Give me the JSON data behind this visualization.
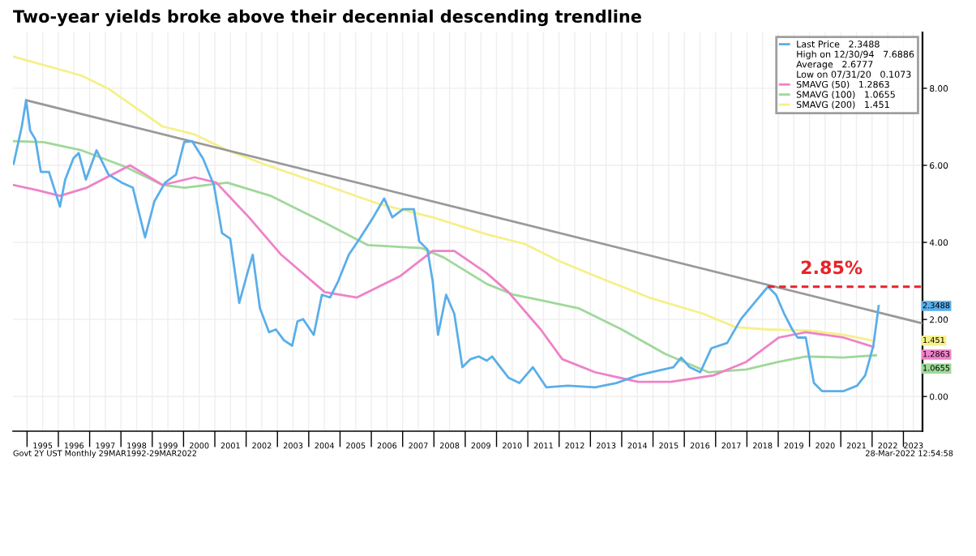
{
  "chart_data": {
    "type": "line",
    "title": "Two-year yields broke above their decennial descending trendline",
    "xlim": [
      1994.55,
      2023.61
    ],
    "ylim": [
      -0.9,
      9.45
    ],
    "xticks": [
      {
        "value": 1995,
        "label": null
      },
      {
        "value": 1995.5,
        "label": "1995"
      },
      {
        "value": 1996,
        "label": null
      },
      {
        "value": 1996.5,
        "label": "1996"
      },
      {
        "value": 1997,
        "label": null
      },
      {
        "value": 1997.5,
        "label": "1997"
      },
      {
        "value": 1998,
        "label": null
      },
      {
        "value": 1998.5,
        "label": "1998"
      },
      {
        "value": 1999,
        "label": null
      },
      {
        "value": 1999.5,
        "label": "1999"
      },
      {
        "value": 2000,
        "label": null
      },
      {
        "value": 2000.5,
        "label": "2000"
      },
      {
        "value": 2001,
        "label": null
      },
      {
        "value": 2001.5,
        "label": "2001"
      },
      {
        "value": 2002,
        "label": null
      },
      {
        "value": 2002.5,
        "label": "2002"
      },
      {
        "value": 2003,
        "label": null
      },
      {
        "value": 2003.5,
        "label": "2003"
      },
      {
        "value": 2004,
        "label": null
      },
      {
        "value": 2004.5,
        "label": "2004"
      },
      {
        "value": 2005,
        "label": null
      },
      {
        "value": 2005.5,
        "label": "2005"
      },
      {
        "value": 2006,
        "label": null
      },
      {
        "value": 2006.5,
        "label": "2006"
      },
      {
        "value": 2007,
        "label": null
      },
      {
        "value": 2007.5,
        "label": "2007"
      },
      {
        "value": 2008,
        "label": null
      },
      {
        "value": 2008.5,
        "label": "2008"
      },
      {
        "value": 2009,
        "label": null
      },
      {
        "value": 2009.5,
        "label": "2009"
      },
      {
        "value": 2010,
        "label": null
      },
      {
        "value": 2010.5,
        "label": "2010"
      },
      {
        "value": 2011,
        "label": null
      },
      {
        "value": 2011.5,
        "label": "2011"
      },
      {
        "value": 2012,
        "label": null
      },
      {
        "value": 2012.5,
        "label": "2012"
      },
      {
        "value": 2013,
        "label": null
      },
      {
        "value": 2013.5,
        "label": "2013"
      },
      {
        "value": 2014,
        "label": null
      },
      {
        "value": 2014.5,
        "label": "2014"
      },
      {
        "value": 2015,
        "label": null
      },
      {
        "value": 2015.5,
        "label": "2015"
      },
      {
        "value": 2016,
        "label": null
      },
      {
        "value": 2016.5,
        "label": "2016"
      },
      {
        "value": 2017,
        "label": null
      },
      {
        "value": 2017.5,
        "label": "2017"
      },
      {
        "value": 2018,
        "label": null
      },
      {
        "value": 2018.5,
        "label": "2018"
      },
      {
        "value": 2019,
        "label": null
      },
      {
        "value": 2019.5,
        "label": "2019"
      },
      {
        "value": 2020,
        "label": null
      },
      {
        "value": 2020.5,
        "label": "2020"
      },
      {
        "value": 2021,
        "label": null
      },
      {
        "value": 2021.5,
        "label": "2021"
      },
      {
        "value": 2022,
        "label": null
      },
      {
        "value": 2022.5,
        "label": "2022"
      },
      {
        "value": 2023,
        "label": null
      },
      {
        "value": 2023.32,
        "label": "2023"
      }
    ],
    "yticks": [
      {
        "value": 0,
        "label": "0.00"
      },
      {
        "value": 2,
        "label": "2.00"
      },
      {
        "value": 4,
        "label": "4.00"
      },
      {
        "value": 6,
        "label": "6.00"
      },
      {
        "value": 8,
        "label": "8.00"
      }
    ],
    "grid": true,
    "legend": "top right",
    "marker": "none",
    "series": [
      {
        "name": "SMAVG (200)   1.451",
        "color": "#f5f08a",
        "x": [
          1994.57,
          1996.74,
          1997.6,
          1999.33,
          2000.36,
          2001.4,
          2002.78,
          2004.51,
          2006.23,
          2007.96,
          2009.69,
          2010.9,
          2011.94,
          2013.15,
          2014.87,
          2016.6,
          2017.63,
          2018.67,
          2020.05,
          2021.09,
          2022.04
        ],
        "values": [
          8.82,
          8.33,
          7.99,
          7.01,
          6.8,
          6.39,
          5.97,
          5.49,
          5.0,
          4.65,
          4.21,
          3.96,
          3.54,
          3.13,
          2.57,
          2.15,
          1.8,
          1.74,
          1.71,
          1.6,
          1.45
        ]
      },
      {
        "name": "SMAVG (100)   1.0655",
        "color": "#9fd89a",
        "x": [
          1994.57,
          1995.53,
          1996.74,
          1998.12,
          1999.33,
          2000.02,
          2001.4,
          2002.78,
          2004.51,
          2005.89,
          2007.62,
          2008.31,
          2009.69,
          2010.55,
          2011.41,
          2012.62,
          2014.0,
          2015.38,
          2016.77,
          2017.98,
          2019.02,
          2019.88,
          2021.09,
          2022.12
        ],
        "values": [
          6.63,
          6.6,
          6.39,
          5.97,
          5.49,
          5.42,
          5.55,
          5.21,
          4.51,
          3.93,
          3.85,
          3.61,
          2.92,
          2.64,
          2.5,
          2.29,
          1.74,
          1.11,
          0.63,
          0.7,
          0.9,
          1.04,
          1.01,
          1.07
        ]
      },
      {
        "name": "SMAVG (50)   1.2863",
        "color": "#ee82c8",
        "x": [
          1994.57,
          1995.35,
          1996.05,
          1996.91,
          1998.29,
          1999.33,
          2000.36,
          2001.05,
          2002.09,
          2003.12,
          2004.51,
          2005.54,
          2006.93,
          2007.96,
          2008.65,
          2009.69,
          2010.38,
          2011.41,
          2012.1,
          2013.15,
          2014.52,
          2015.56,
          2016.94,
          2017.98,
          2019.02,
          2019.88,
          2021.09,
          2022.04
        ],
        "values": [
          5.49,
          5.35,
          5.21,
          5.42,
          6.0,
          5.49,
          5.69,
          5.55,
          4.65,
          3.68,
          2.71,
          2.57,
          3.13,
          3.78,
          3.78,
          3.2,
          2.71,
          1.74,
          0.97,
          0.63,
          0.38,
          0.38,
          0.55,
          0.9,
          1.53,
          1.67,
          1.53,
          1.29
        ]
      },
      {
        "name": null,
        "color": "#999999",
        "x": [
          1994.97,
          2023.6
        ],
        "values": [
          7.69,
          1.9
        ]
      },
      {
        "name": "Last Price   2.3488",
        "color": "#5aaeea",
        "x": [
          1994.57,
          1994.83,
          1994.97,
          1995.1,
          1995.27,
          1995.44,
          1995.7,
          1996.05,
          1996.22,
          1996.48,
          1996.65,
          1996.88,
          1997.22,
          1997.6,
          1998.03,
          1998.38,
          1998.77,
          1999.07,
          1999.41,
          1999.76,
          2000.02,
          2000.27,
          2000.62,
          2000.97,
          2001.23,
          2001.49,
          2001.78,
          2002.06,
          2002.21,
          2002.44,
          2002.73,
          2002.95,
          2003.21,
          2003.47,
          2003.64,
          2003.82,
          2004.16,
          2004.42,
          2004.68,
          2004.94,
          2005.28,
          2005.63,
          2006.06,
          2006.41,
          2006.67,
          2007.01,
          2007.36,
          2007.53,
          2007.79,
          2007.96,
          2008.13,
          2008.39,
          2008.65,
          2008.91,
          2009.17,
          2009.43,
          2009.69,
          2009.86,
          2010.38,
          2010.73,
          2011.16,
          2011.59,
          2012.28,
          2013.15,
          2013.83,
          2014.52,
          2015.04,
          2015.65,
          2015.9,
          2016.17,
          2016.51,
          2016.86,
          2017.37,
          2017.81,
          2018.24,
          2018.67,
          2018.93,
          2019.19,
          2019.45,
          2019.62,
          2019.88,
          2020.14,
          2020.4,
          2021.09,
          2021.52,
          2021.78,
          2022.04,
          2022.21
        ],
        "values": [
          6.04,
          7.0,
          7.69,
          6.9,
          6.67,
          5.83,
          5.83,
          4.93,
          5.63,
          6.18,
          6.32,
          5.63,
          6.39,
          5.76,
          5.55,
          5.42,
          4.13,
          5.07,
          5.55,
          5.76,
          6.6,
          6.63,
          6.18,
          5.49,
          4.24,
          4.1,
          2.43,
          3.26,
          3.68,
          2.29,
          1.67,
          1.74,
          1.46,
          1.32,
          1.95,
          2.01,
          1.6,
          2.64,
          2.57,
          2.99,
          3.68,
          4.1,
          4.65,
          5.14,
          4.65,
          4.86,
          4.86,
          4.03,
          3.82,
          2.99,
          1.6,
          2.64,
          2.15,
          0.76,
          0.97,
          1.04,
          0.93,
          1.04,
          0.49,
          0.35,
          0.76,
          0.24,
          0.28,
          0.24,
          0.35,
          0.55,
          0.65,
          0.76,
          1.01,
          0.76,
          0.63,
          1.25,
          1.39,
          2.01,
          2.43,
          2.85,
          2.64,
          2.15,
          1.74,
          1.53,
          1.53,
          0.35,
          0.14,
          0.14,
          0.28,
          0.55,
          1.32,
          2.35
        ]
      },
      {
        "name": null,
        "color": "#e8232a",
        "line_style": "dashed",
        "x": [
          2018.67,
          2023.6
        ],
        "values": [
          2.85,
          2.85
        ]
      }
    ],
    "annotations": [
      {
        "text": "2.85%",
        "x": 2020.7,
        "y": 2.85
      },
      "High on 12/30/94   7.6886",
      "Average   2.6777",
      "Low on 07/31/20   0.1073",
      "Govt 2Y UST Monthly 29MAR1992-29MAR2022",
      "28-Mar-2022 12:54:58",
      "1.451",
      "1.0655",
      "1.2863",
      "2.3488"
    ]
  }
}
